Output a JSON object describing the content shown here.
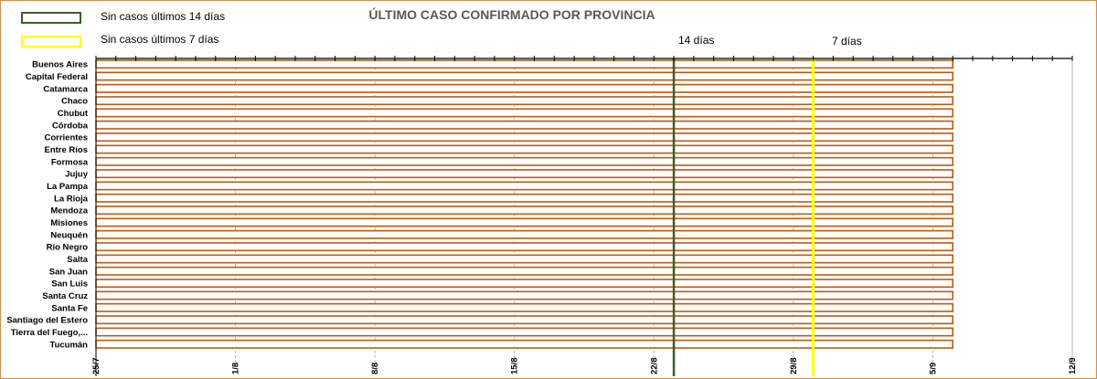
{
  "legend": [
    {
      "label": "Sin casos últimos 14 días",
      "color": "#3a5f2a"
    },
    {
      "label": "Sin casos últimos 7 días",
      "color": "#ffff00"
    }
  ],
  "colors": {
    "bar_stroke": "#c0580f",
    "grid": "#b8b8b8",
    "line_14": "#3a5f2a",
    "line_7": "#ffff00"
  },
  "chart_data": {
    "type": "bar",
    "orientation": "horizontal",
    "title": "ÚLTIMO CASO CONFIRMADO POR PROVINCIA",
    "categories": [
      "Buenos Aires",
      "Capital Federal",
      "Catamarca",
      "Chaco",
      "Chubut",
      "Córdoba",
      "Corrientes",
      "Entre Ríos",
      "Formosa",
      "Jujuy",
      "La Pampa",
      "La Rioja",
      "Mendoza",
      "Misiones",
      "Neuquén",
      "Río Negro",
      "Salta",
      "San Juan",
      "San Luis",
      "Santa Cruz",
      "Santa Fe",
      "Santiago del Estero",
      "Tierra del Fuego,...",
      "Tucumán"
    ],
    "values": [
      "2020-09-06",
      "2020-09-06",
      "2020-09-06",
      "2020-09-06",
      "2020-09-06",
      "2020-09-06",
      "2020-09-06",
      "2020-09-06",
      "2020-09-06",
      "2020-09-06",
      "2020-09-06",
      "2020-09-06",
      "2020-09-06",
      "2020-09-06",
      "2020-09-06",
      "2020-09-06",
      "2020-09-06",
      "2020-09-06",
      "2020-09-06",
      "2020-09-06",
      "2020-09-06",
      "2020-09-06",
      "2020-09-06",
      "2020-09-06"
    ],
    "xlim": [
      "2020-07-25",
      "2020-09-12"
    ],
    "xticks": [
      {
        "date": "2020-07-25",
        "label": "25/7"
      },
      {
        "date": "2020-08-01",
        "label": "1/8"
      },
      {
        "date": "2020-08-08",
        "label": "8/8"
      },
      {
        "date": "2020-08-15",
        "label": "15/8"
      },
      {
        "date": "2020-08-22",
        "label": "22/8"
      },
      {
        "date": "2020-08-29",
        "label": "29/8"
      },
      {
        "date": "2020-09-05",
        "label": "5/9"
      },
      {
        "date": "2020-09-12",
        "label": "12/9"
      }
    ],
    "reference_lines": [
      {
        "date": "2020-08-23",
        "label": "14 días",
        "color": "#3a5f2a"
      },
      {
        "date": "2020-08-30",
        "label": "7 días",
        "color": "#ffff00"
      }
    ],
    "grid": true,
    "legend_position": "top-left"
  }
}
